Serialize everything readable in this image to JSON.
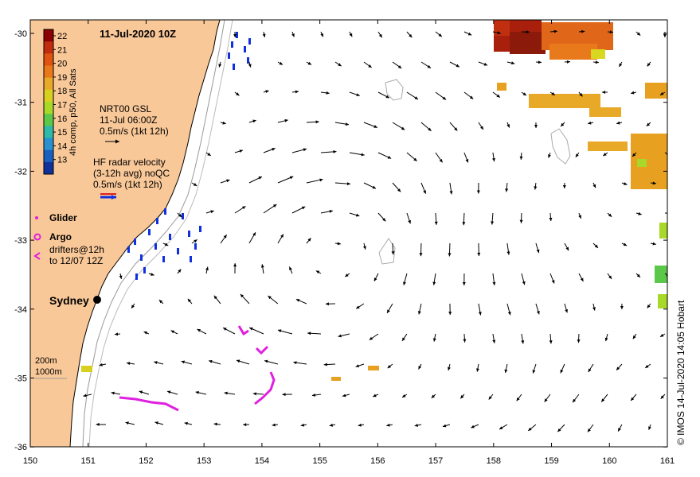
{
  "title": "11-Jul-2020 10Z",
  "credit": "© IMOS 14-Jul-2020 14:05 Hobart",
  "colorbar": {
    "label": "4h comp, p50, All Sats",
    "ticks": [
      "22",
      "21",
      "20",
      "19",
      "18",
      "17",
      "16",
      "15",
      "14",
      "13"
    ],
    "colors": [
      "#8b0000",
      "#c22c0e",
      "#e0520f",
      "#e8781a",
      "#e8a82a",
      "#d8d020",
      "#a8d828",
      "#5cc84a",
      "#30b8a8",
      "#2890d0",
      "#1860c0",
      "#10309a"
    ]
  },
  "legend": {
    "gsl_title": "NRT00 GSL",
    "gsl_time": "11-Jul 06:00Z",
    "gsl_scale": "0.5m/s (1kt 12h)",
    "hf_title": "HF radar velocity",
    "hf_avg": "(3-12h avg) noQC",
    "hf_scale": "0.5m/s (1kt 12h)",
    "glider": "Glider",
    "argo": "Argo",
    "drifters_1": "drifters@12h",
    "drifters_2": "to 12/07 12Z",
    "city": "Sydney",
    "isobath_1": "200m",
    "isobath_2": "1000m"
  },
  "axes": {
    "lon_ticks": [
      "150",
      "151",
      "152",
      "153",
      "154",
      "155",
      "156",
      "157",
      "158",
      "159",
      "160",
      "161"
    ],
    "lat_ticks": [
      "-30",
      "-31",
      "-32",
      "-33",
      "-34",
      "-35",
      "-36"
    ]
  },
  "colors": {
    "land": "#f9c898",
    "ocean": "#ffffff",
    "hf_radar": "#1030e0",
    "drifter": "#e020e0",
    "isobath": "#999999"
  }
}
